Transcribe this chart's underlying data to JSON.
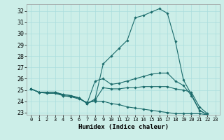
{
  "xlabel": "Humidex (Indice chaleur)",
  "background_color": "#cceee8",
  "grid_color": "#aadddd",
  "line_color": "#1a6b6b",
  "xlim": [
    -0.5,
    23.5
  ],
  "ylim": [
    22.8,
    32.6
  ],
  "yticks": [
    23,
    24,
    25,
    26,
    27,
    28,
    29,
    30,
    31,
    32
  ],
  "xticks": [
    0,
    1,
    2,
    3,
    4,
    5,
    6,
    7,
    8,
    9,
    10,
    11,
    12,
    13,
    14,
    15,
    16,
    17,
    18,
    19,
    20,
    21,
    22,
    23
  ],
  "series": [
    [
      25.1,
      24.8,
      24.8,
      24.8,
      24.6,
      24.5,
      24.3,
      23.8,
      24.2,
      27.3,
      28.0,
      28.7,
      29.4,
      31.4,
      31.6,
      31.9,
      32.2,
      31.8,
      29.3,
      25.9,
      24.6,
      23.2,
      22.8
    ],
    [
      25.1,
      24.8,
      24.8,
      24.8,
      24.6,
      24.5,
      24.3,
      23.8,
      25.8,
      26.0,
      25.5,
      25.6,
      25.8,
      26.0,
      26.2,
      26.4,
      26.5,
      26.5,
      25.8,
      25.4,
      24.5,
      23.2,
      22.8
    ],
    [
      25.1,
      24.8,
      24.8,
      24.8,
      24.5,
      24.4,
      24.3,
      23.8,
      24.1,
      25.2,
      25.1,
      25.1,
      25.2,
      25.2,
      25.3,
      25.3,
      25.3,
      25.3,
      25.1,
      25.0,
      24.8,
      23.5,
      22.9
    ],
    [
      25.1,
      24.8,
      24.7,
      24.7,
      24.5,
      24.4,
      24.2,
      23.9,
      24.0,
      24.0,
      23.8,
      23.7,
      23.5,
      23.4,
      23.3,
      23.2,
      23.1,
      23.0,
      22.9,
      22.9,
      22.9,
      22.9,
      22.8
    ]
  ]
}
